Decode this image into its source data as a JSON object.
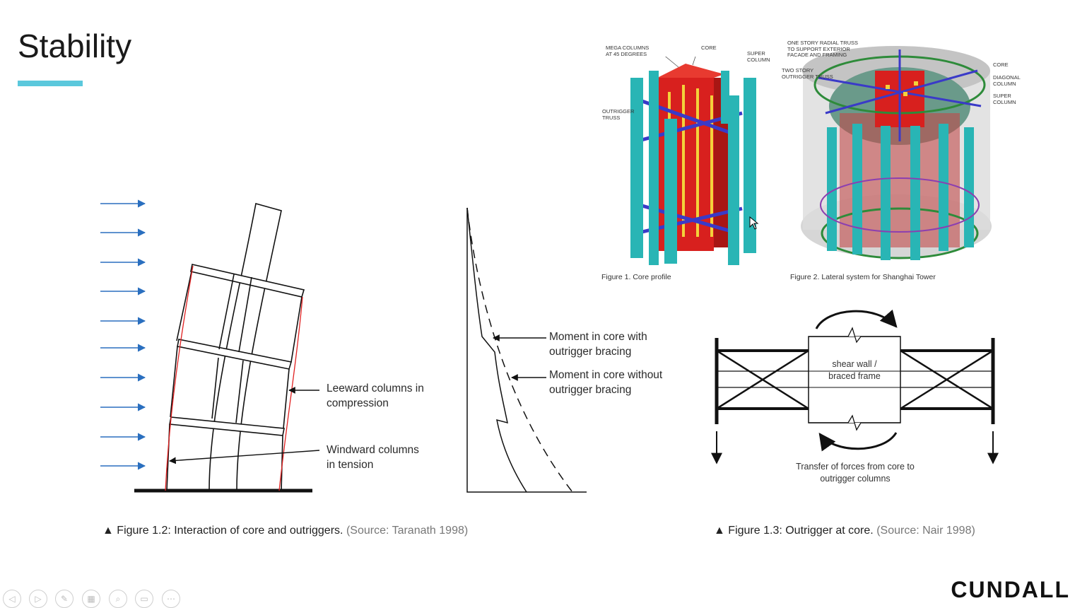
{
  "slide": {
    "title": "Stability",
    "accent_color": "#5bc8dc",
    "fig12": {
      "label_leeward": [
        "Leeward columns in",
        "compression"
      ],
      "label_windward": [
        "Windward columns",
        "in tension"
      ],
      "label_moment_with": [
        "Moment in core with",
        "outrigger bracing"
      ],
      "label_moment_without": [
        "Moment in core without",
        "outrigger bracing"
      ],
      "caption_main": "Figure 1.2: Interaction of core and outriggers.",
      "caption_source": "(Source: Taranath 1998)",
      "wind_arrow_color": "#2a6fbf",
      "column_force_color": "#e02020"
    },
    "fig1": {
      "caption": "Figure 1. Core profile",
      "label_mega": [
        "MEGA COLUMNS",
        "AT 45 DEGREES"
      ],
      "label_core": "CORE",
      "label_super": [
        "SUPER",
        "COLUMN"
      ],
      "label_outrigger": [
        "OUTRIGGER",
        "TRUSS"
      ]
    },
    "fig2": {
      "caption": "Figure 2. Lateral system for Shanghai Tower",
      "label_radial": [
        "ONE STORY RADIAL TRUSS",
        "TO SUPPORT EXTERIOR",
        "FACADE AND FRAMING"
      ],
      "label_two_story": [
        "TWO STORY",
        "OUTRIGGER TRUSS"
      ],
      "label_core": "CORE",
      "label_diagonal": [
        "DIAGONAL",
        "COLUMN"
      ],
      "label_super": [
        "SUPER",
        "COLUMN"
      ]
    },
    "fig13": {
      "label_shear": [
        "shear wall /",
        "braced frame"
      ],
      "label_transfer": [
        "Transfer of forces from core to",
        "outrigger columns"
      ],
      "caption_main": "Figure 1.3: Outrigger at core.",
      "caption_source": "(Source: Nair 1998)"
    },
    "logo": "CUNDALL"
  },
  "controls": [
    {
      "name": "previous-slide-icon",
      "glyph": "◁"
    },
    {
      "name": "next-slide-icon",
      "glyph": "▷"
    },
    {
      "name": "pen-icon",
      "glyph": "✎"
    },
    {
      "name": "slides-grid-icon",
      "glyph": "▦"
    },
    {
      "name": "zoom-icon",
      "glyph": "⌕"
    },
    {
      "name": "subtitles-icon",
      "glyph": "▭"
    },
    {
      "name": "more-options-icon",
      "glyph": "⋯"
    }
  ]
}
